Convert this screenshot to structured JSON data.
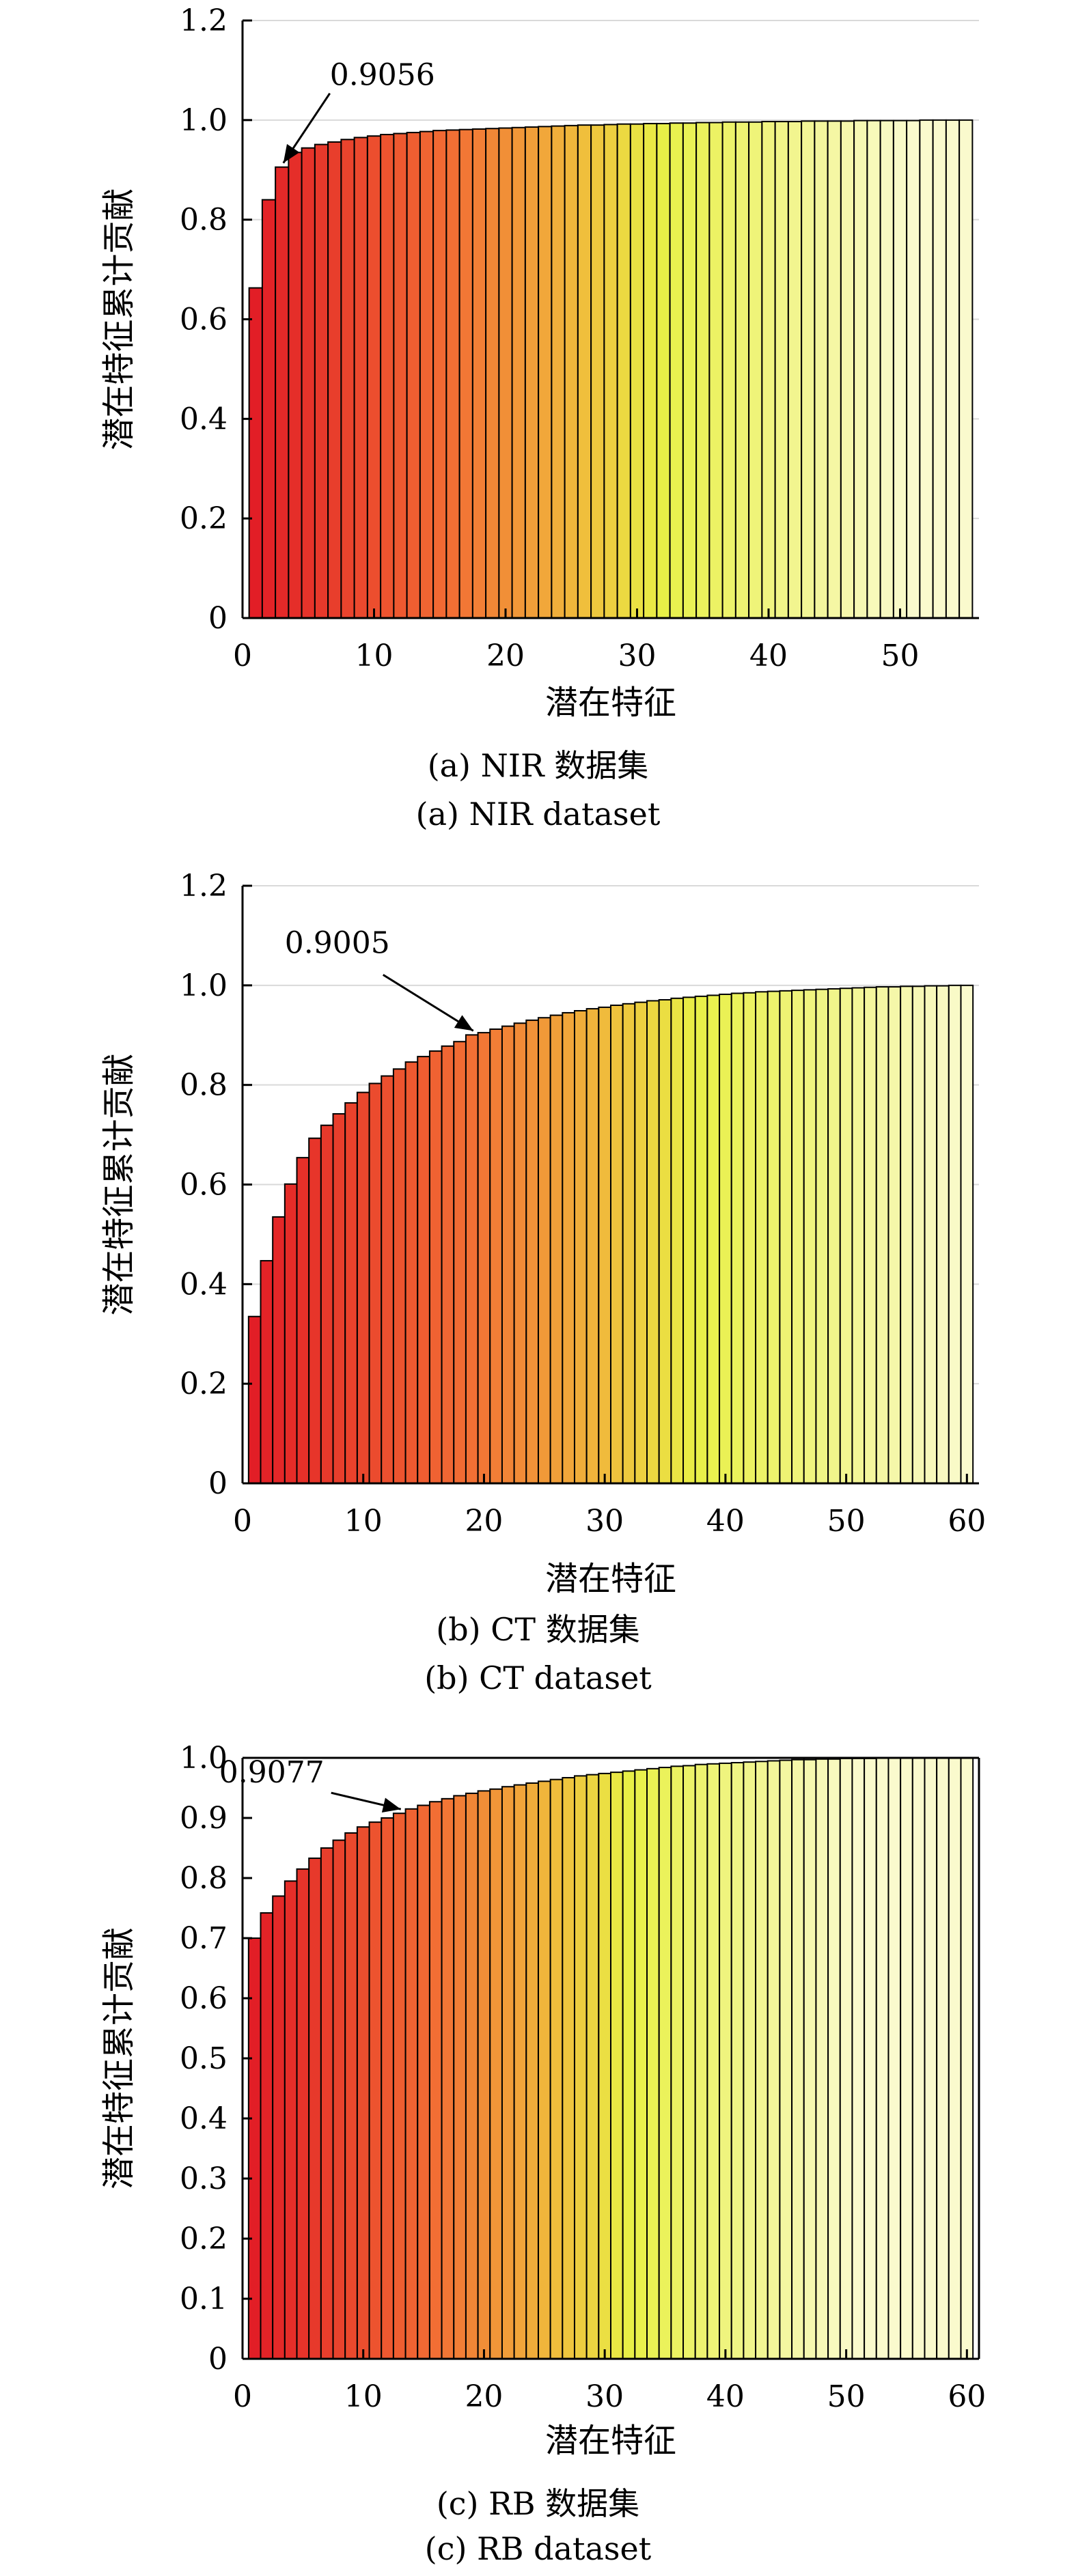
{
  "chart_data": [
    {
      "type": "bar",
      "xlabel": "潜在特征",
      "ylabel": "潜在特征累计贡献",
      "caption_cn": "(a) NIR 数据集",
      "caption_en": "(a) NIR dataset",
      "ylim": [
        0,
        1.2
      ],
      "yticks": [
        "0",
        "0.2",
        "0.4",
        "0.6",
        "0.8",
        "1.0",
        "1.2"
      ],
      "xlim": [
        0,
        56
      ],
      "xticks": [
        "0",
        "10",
        "20",
        "30",
        "40",
        "50"
      ],
      "grid": true,
      "annotation": {
        "text": "0.9056",
        "x": 3,
        "y": 0.9056
      },
      "values": [
        0.663,
        0.84,
        0.9056,
        0.935,
        0.944,
        0.951,
        0.956,
        0.961,
        0.965,
        0.968,
        0.971,
        0.973,
        0.975,
        0.977,
        0.979,
        0.98,
        0.981,
        0.982,
        0.983,
        0.984,
        0.985,
        0.986,
        0.987,
        0.988,
        0.989,
        0.99,
        0.99,
        0.991,
        0.992,
        0.992,
        0.993,
        0.993,
        0.994,
        0.994,
        0.995,
        0.995,
        0.996,
        0.996,
        0.996,
        0.997,
        0.997,
        0.997,
        0.998,
        0.998,
        0.998,
        0.998,
        0.999,
        0.999,
        0.999,
        0.999,
        0.999,
        1.0,
        1.0,
        1.0,
        1.0
      ]
    },
    {
      "type": "bar",
      "xlabel": "潜在特征",
      "ylabel": "潜在特征累计贡献",
      "caption_cn": "(b) CT 数据集",
      "caption_en": "(b) CT dataset",
      "ylim": [
        0,
        1.2
      ],
      "yticks": [
        "0",
        "0.2",
        "0.4",
        "0.6",
        "0.8",
        "1.0",
        "1.2"
      ],
      "xlim": [
        0,
        61
      ],
      "xticks": [
        "0",
        "10",
        "20",
        "30",
        "40",
        "50",
        "60"
      ],
      "grid": true,
      "annotation": {
        "text": "0.9005",
        "x": 19,
        "y": 0.9005
      },
      "values": [
        0.335,
        0.447,
        0.535,
        0.601,
        0.654,
        0.693,
        0.719,
        0.742,
        0.764,
        0.785,
        0.803,
        0.818,
        0.832,
        0.846,
        0.857,
        0.868,
        0.878,
        0.887,
        0.9005,
        0.905,
        0.912,
        0.918,
        0.924,
        0.93,
        0.935,
        0.94,
        0.945,
        0.949,
        0.953,
        0.956,
        0.96,
        0.963,
        0.966,
        0.969,
        0.971,
        0.974,
        0.976,
        0.978,
        0.98,
        0.982,
        0.984,
        0.985,
        0.987,
        0.988,
        0.989,
        0.99,
        0.991,
        0.992,
        0.993,
        0.994,
        0.995,
        0.996,
        0.997,
        0.997,
        0.998,
        0.998,
        0.999,
        0.999,
        1.0,
        1.0
      ]
    },
    {
      "type": "bar",
      "xlabel": "潜在特征",
      "ylabel": "潜在特征累计贡献",
      "caption_cn": "(c) RB 数据集",
      "caption_en": "(c) RB dataset",
      "ylim": [
        0,
        1.0
      ],
      "yticks": [
        "0",
        "0.1",
        "0.2",
        "0.3",
        "0.4",
        "0.5",
        "0.6",
        "0.7",
        "0.8",
        "0.9",
        "1.0"
      ],
      "xlim": [
        0,
        61
      ],
      "xticks": [
        "0",
        "10",
        "20",
        "30",
        "40",
        "50",
        "60"
      ],
      "grid": false,
      "annotation": {
        "text": "0.9077",
        "x": 13,
        "y": 0.9077
      },
      "values": [
        0.7,
        0.742,
        0.77,
        0.795,
        0.815,
        0.833,
        0.85,
        0.863,
        0.875,
        0.885,
        0.893,
        0.9,
        0.9077,
        0.915,
        0.921,
        0.927,
        0.932,
        0.937,
        0.941,
        0.945,
        0.948,
        0.952,
        0.955,
        0.958,
        0.961,
        0.964,
        0.967,
        0.97,
        0.972,
        0.974,
        0.976,
        0.978,
        0.98,
        0.982,
        0.984,
        0.986,
        0.987,
        0.989,
        0.99,
        0.991,
        0.992,
        0.993,
        0.994,
        0.995,
        0.996,
        0.997,
        0.997,
        0.998,
        0.998,
        0.999,
        0.999,
        0.999,
        1.0,
        1.0,
        1.0,
        1.0,
        1.0,
        1.0,
        1.0,
        1.0
      ]
    }
  ]
}
